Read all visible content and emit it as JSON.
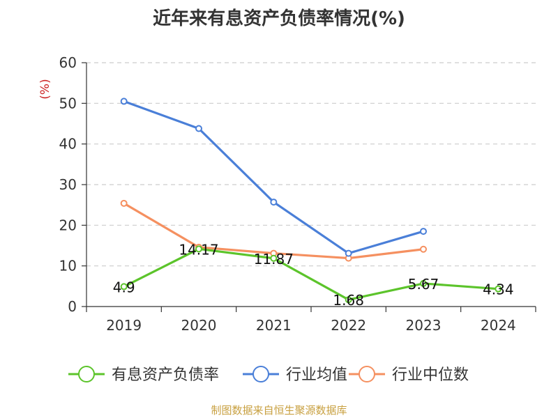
{
  "chart_data": {
    "type": "line",
    "title": "近年来有息资产负债率情况(%)",
    "ylabel": "(%)",
    "xlabel": "",
    "categories": [
      "2019",
      "2020",
      "2021",
      "2022",
      "2023",
      "2024"
    ],
    "ylim": [
      0,
      60
    ],
    "yticks": [
      0,
      10,
      20,
      30,
      40,
      50,
      60
    ],
    "grid": true,
    "legend_position": "bottom",
    "series": [
      {
        "name": "有息资产负债率",
        "color": "#5cc42b",
        "values": [
          4.9,
          14.17,
          11.87,
          1.68,
          5.67,
          4.34
        ],
        "labels": [
          "4.9",
          "14.17",
          "11.87",
          "1.68",
          "5.67",
          "4.34"
        ]
      },
      {
        "name": "行业均值",
        "color": "#4a7fd8",
        "values": [
          50.5,
          43.8,
          25.7,
          13.1,
          18.5,
          null
        ]
      },
      {
        "name": "行业中位数",
        "color": "#f59060",
        "values": [
          25.4,
          14.6,
          13.1,
          11.9,
          14.1,
          null
        ]
      }
    ]
  },
  "source": "制图数据来自恒生聚源数据库"
}
